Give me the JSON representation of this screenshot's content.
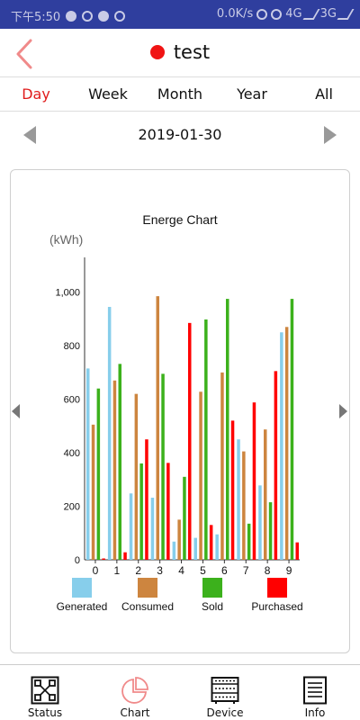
{
  "status_bar": {
    "time": "下午5:50",
    "network_speed": "0.0K/s",
    "sim1": "4G",
    "sim2": "3G"
  },
  "header": {
    "title": "test",
    "status_color": "#f01414"
  },
  "tabs": [
    {
      "label": "Day",
      "active": true
    },
    {
      "label": "Week",
      "active": false
    },
    {
      "label": "Month",
      "active": false
    },
    {
      "label": "Year",
      "active": false
    },
    {
      "label": "All",
      "active": false
    }
  ],
  "date": "2019-01-30",
  "chart_data": {
    "type": "bar",
    "title": "Energe Chart",
    "unit_label": "(kWh)",
    "categories": [
      "0",
      "1",
      "2",
      "3",
      "4",
      "5",
      "6",
      "7",
      "8",
      "9"
    ],
    "ylim": [
      0,
      1130
    ],
    "yticks": [
      0,
      200,
      400,
      600,
      800,
      1000
    ],
    "ytick_labels": [
      "0",
      "200",
      "400",
      "600",
      "800",
      "1,000"
    ],
    "grid": false,
    "legend_position": "bottom",
    "series": [
      {
        "name": "Generated",
        "color": "#87ceeb",
        "values": [
          715,
          945,
          248,
          232,
          68,
          82,
          95,
          450,
          278,
          850
        ]
      },
      {
        "name": "Consumed",
        "color": "#cd853f",
        "values": [
          505,
          670,
          620,
          985,
          150,
          628,
          700,
          405,
          487,
          870
        ]
      },
      {
        "name": "Sold",
        "color": "#3cb11c",
        "values": [
          640,
          732,
          360,
          695,
          310,
          898,
          975,
          135,
          215,
          975
        ]
      },
      {
        "name": "Purchased",
        "color": "#ff0000",
        "values": [
          5,
          28,
          450,
          362,
          885,
          130,
          520,
          588,
          705,
          65
        ]
      }
    ]
  },
  "bottom_nav": [
    {
      "label": "Status",
      "icon": "status-icon"
    },
    {
      "label": "Chart",
      "icon": "pie-chart-icon"
    },
    {
      "label": "Device",
      "icon": "device-icon"
    },
    {
      "label": "Info",
      "icon": "info-icon"
    }
  ]
}
